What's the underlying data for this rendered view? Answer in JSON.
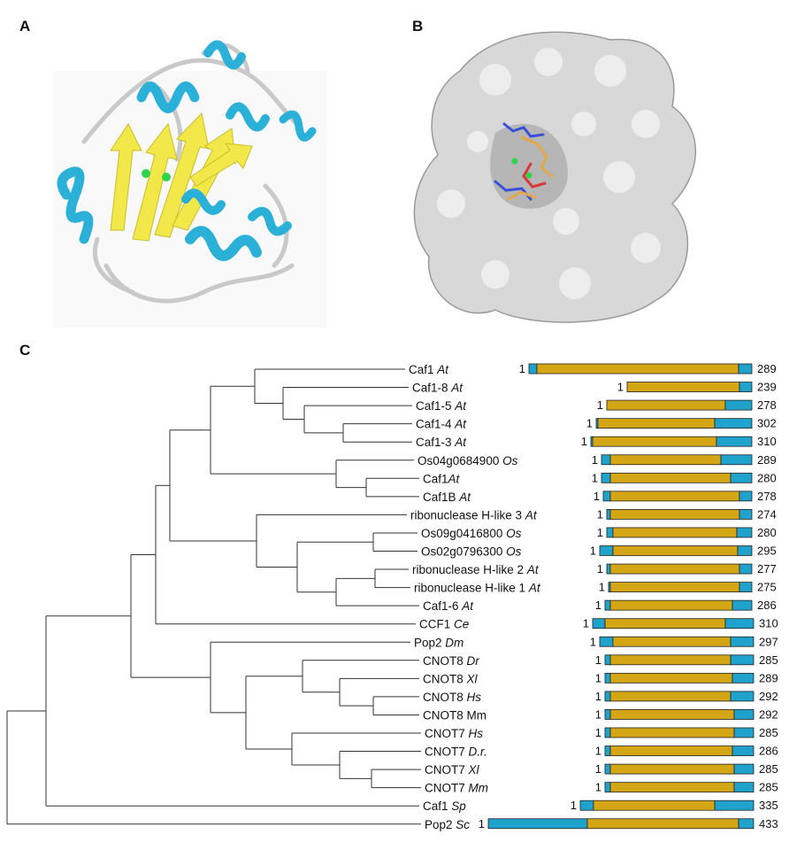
{
  "panels": {
    "a": "A",
    "b": "B",
    "c": "C"
  },
  "colors": {
    "helix": "#2bb0d8",
    "strand": "#f3e84a",
    "coil": "#c9c9c9",
    "ion": "#2fd44a",
    "surface": "#d8d8d8",
    "domain_core": "#d4a514",
    "domain_ends": "#1fa2cc",
    "tree": "#333333"
  },
  "taxa": [
    {
      "name": "Caf1 ",
      "species": "At",
      "start": "1",
      "end": "289"
    },
    {
      "name": "Caf1-8 ",
      "species": "At",
      "start": "1",
      "end": "239"
    },
    {
      "name": "Caf1-5 ",
      "species": "At",
      "start": "1",
      "end": "278"
    },
    {
      "name": "Caf1-4 ",
      "species": "At",
      "start": "1",
      "end": "302"
    },
    {
      "name": "Caf1-3 ",
      "species": "At",
      "start": "1",
      "end": "310"
    },
    {
      "name": "Os04g0684900 ",
      "species": "Os",
      "start": "1",
      "end": "289"
    },
    {
      "name": "Caf1",
      "species": "At",
      "start": "1",
      "end": "280"
    },
    {
      "name": "Caf1B ",
      "species": "At",
      "start": "1",
      "end": "278"
    },
    {
      "name": "ribonuclease H-like 3 ",
      "species": "At",
      "start": "1",
      "end": "274"
    },
    {
      "name": "Os09g0416800 ",
      "species": "Os",
      "start": "1",
      "end": "280"
    },
    {
      "name": "Os02g0796300 ",
      "species": "Os",
      "start": "1",
      "end": "295"
    },
    {
      "name": "ribonuclease H-like 2 ",
      "species": "At",
      "start": "1",
      "end": "277"
    },
    {
      "name": "ribonuclease H-like 1 ",
      "species": "At",
      "start": "1",
      "end": "275"
    },
    {
      "name": "Caf1-6 ",
      "species": "At",
      "start": "1",
      "end": "286"
    },
    {
      "name": "CCF1 ",
      "species": "Ce",
      "start": "1",
      "end": "310"
    },
    {
      "name": "Pop2 ",
      "species": "Dm",
      "start": "1",
      "end": "297"
    },
    {
      "name": "CNOT8 ",
      "species": "Dr",
      "start": "1",
      "end": "285"
    },
    {
      "name": "CNOT8 ",
      "species": "Xl",
      "start": "1",
      "end": "289"
    },
    {
      "name": "CNOT8 ",
      "species": "Hs",
      "start": "1",
      "end": "292"
    },
    {
      "name": "CNOT8 Mm",
      "species": "",
      "start": "1",
      "end": "292"
    },
    {
      "name": "CNOT7 ",
      "species": "Hs",
      "start": "1",
      "end": "285"
    },
    {
      "name": "CNOT7 ",
      "species": "D.r.",
      "start": "1",
      "end": "286"
    },
    {
      "name": "CNOT7 ",
      "species": "Xl",
      "start": "1",
      "end": "285"
    },
    {
      "name": "CNOT7 ",
      "species": "Mm",
      "start": "1",
      "end": "285"
    },
    {
      "name": "Caf1 ",
      "species": "Sp",
      "start": "1",
      "end": "335"
    },
    {
      "name": "Pop2 ",
      "species": "Sc",
      "start": "1",
      "end": "433"
    }
  ]
}
